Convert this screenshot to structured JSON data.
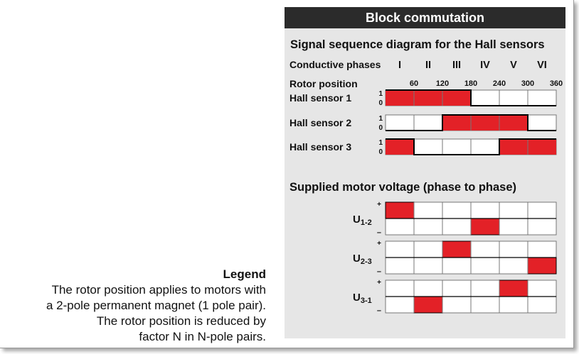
{
  "panel": {
    "banner_title": "Block commutation",
    "hall_heading": "Signal sequence diagram for the Hall sensors",
    "conductive_label": "Conductive phases",
    "phases": [
      "I",
      "II",
      "III",
      "IV",
      "V",
      "VI"
    ],
    "rotor_label": "Rotor position",
    "angles": [
      "60",
      "120",
      "180",
      "240",
      "300",
      "360"
    ],
    "level_high": "1",
    "level_low": "0",
    "sensors": [
      {
        "label": "Hall sensor 1",
        "states": [
          1,
          1,
          1,
          0,
          0,
          0
        ]
      },
      {
        "label": "Hall sensor 2",
        "states": [
          0,
          0,
          1,
          1,
          1,
          0
        ]
      },
      {
        "label": "Hall sensor 3",
        "states": [
          1,
          0,
          0,
          0,
          1,
          1
        ]
      }
    ],
    "voltage_heading": "Supplied motor voltage (phase to phase)",
    "plus_sign": "+",
    "minus_sign": "–",
    "voltages": [
      {
        "base": "U",
        "sub": "1-2",
        "states": [
          1,
          0,
          0,
          -1,
          0,
          0
        ]
      },
      {
        "base": "U",
        "sub": "2-3",
        "states": [
          0,
          0,
          1,
          0,
          0,
          -1
        ]
      },
      {
        "base": "U",
        "sub": "3-1",
        "states": [
          0,
          -1,
          0,
          0,
          1,
          0
        ]
      }
    ]
  },
  "legend": {
    "title": "Legend",
    "lines": [
      "The rotor position applies to motors with",
      "a 2-pole permanent magnet (1 pole pair).",
      "The rotor position is reduced by",
      "factor N in N-pole pairs."
    ]
  },
  "colors": {
    "signal_fill": "#e32127",
    "banner": "#2b2b2b",
    "panel": "#e6e6e6"
  }
}
